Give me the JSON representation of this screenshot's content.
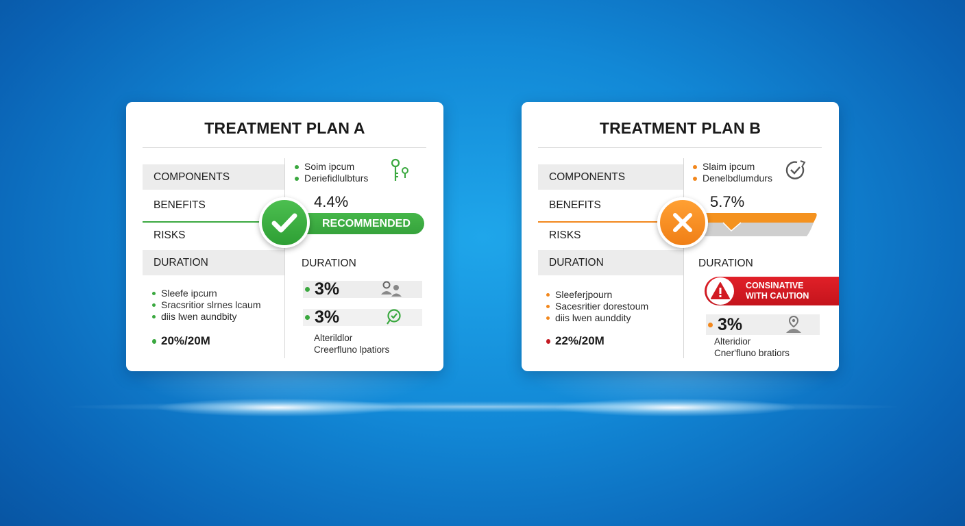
{
  "plan_a": {
    "title": "TREATMENT PLAN A",
    "labels": {
      "components": "COMPONENTS",
      "benefits": "BENEFITS",
      "risks": "RISKS",
      "duration": "DURATION"
    },
    "top_bullets": [
      "Soim ipcum",
      "Deriefidlulbturs"
    ],
    "stat": "4.4%",
    "badge": "RECOMMENDED",
    "left_bullets": [
      "Sleefe ipcurn",
      "Sracsritior slrnes lcaum",
      "diis lwen aundbity"
    ],
    "total": "20%/20M",
    "duration_head": "DURATION",
    "pct_rows": [
      "3%",
      "3%"
    ],
    "notes": [
      "Alterildlor",
      "Creerfluno lpatiors"
    ],
    "accent": "#3aa83f"
  },
  "plan_b": {
    "title": "TREATMENT PLAN B",
    "labels": {
      "components": "COMPONENTS",
      "benefits": "BENEFITS",
      "risks": "RISKS",
      "duration": "DURATION"
    },
    "top_bullets": [
      "Slaim ipcum",
      "Denelbdlumdurs"
    ],
    "stat": "5.7%",
    "left_bullets": [
      "Sleeferjpourn",
      "Sacesritier dorestoum",
      "diis lwen aunddity"
    ],
    "total": "22%/20M",
    "duration_head": "DURATION",
    "warning": [
      "CONSINATIVE",
      "WITH CAUTION"
    ],
    "pct": "3%",
    "notes": [
      "Alteridior",
      "Cner'fluno bratiors"
    ],
    "accent": "#f2871c",
    "alert": "#d21a22"
  }
}
